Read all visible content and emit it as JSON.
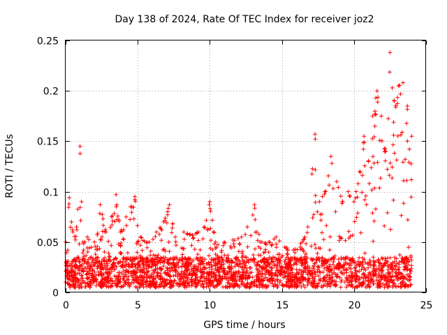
{
  "chart_data": {
    "type": "scatter",
    "title": "Day 138 of 2024, Rate Of TEC Index for receiver joz2",
    "xlabel": "GPS time / hours",
    "ylabel": "ROTI / TECUs",
    "xlim": [
      0,
      25
    ],
    "ylim": [
      0,
      0.25
    ],
    "xticks": [
      0,
      5,
      10,
      15,
      20,
      25
    ],
    "xtick_labels": [
      "0",
      "5",
      "10",
      "15",
      "20",
      "25"
    ],
    "yticks": [
      0,
      0.05,
      0.1,
      0.15,
      0.2,
      0.25
    ],
    "ytick_labels": [
      "0",
      "0.05",
      "0.1",
      "0.15",
      "0.2",
      "0.25"
    ],
    "grid": true,
    "marker": "plus",
    "series": [
      {
        "name": "ROTI",
        "color": "#ff0000",
        "x_range": [
          0.0,
          24.0
        ],
        "baseline_range": [
          0.005,
          0.035
        ],
        "upper_envelope": [
          [
            0.0,
            0.05
          ],
          [
            0.25,
            0.094
          ],
          [
            0.5,
            0.06
          ],
          [
            0.75,
            0.065
          ],
          [
            1.0,
            0.145
          ],
          [
            1.2,
            0.05
          ],
          [
            1.5,
            0.055
          ],
          [
            2.0,
            0.05
          ],
          [
            2.4,
            0.087
          ],
          [
            2.8,
            0.06
          ],
          [
            3.2,
            0.075
          ],
          [
            3.5,
            0.097
          ],
          [
            3.8,
            0.06
          ],
          [
            4.2,
            0.075
          ],
          [
            4.5,
            0.085
          ],
          [
            4.8,
            0.095
          ],
          [
            5.2,
            0.055
          ],
          [
            5.8,
            0.05
          ],
          [
            6.3,
            0.06
          ],
          [
            6.8,
            0.07
          ],
          [
            7.2,
            0.087
          ],
          [
            7.6,
            0.055
          ],
          [
            8.2,
            0.06
          ],
          [
            8.8,
            0.057
          ],
          [
            9.2,
            0.06
          ],
          [
            9.6,
            0.065
          ],
          [
            10.0,
            0.09
          ],
          [
            10.4,
            0.05
          ],
          [
            11.0,
            0.05
          ],
          [
            11.6,
            0.052
          ],
          [
            12.2,
            0.055
          ],
          [
            12.6,
            0.065
          ],
          [
            13.1,
            0.087
          ],
          [
            13.5,
            0.05
          ],
          [
            14.1,
            0.05
          ],
          [
            14.6,
            0.055
          ],
          [
            15.2,
            0.045
          ],
          [
            15.8,
            0.042
          ],
          [
            16.4,
            0.05
          ],
          [
            16.8,
            0.065
          ],
          [
            17.3,
            0.157
          ],
          [
            17.6,
            0.09
          ],
          [
            18.0,
            0.1
          ],
          [
            18.4,
            0.135
          ],
          [
            18.8,
            0.11
          ],
          [
            19.2,
            0.09
          ],
          [
            19.6,
            0.1
          ],
          [
            20.0,
            0.09
          ],
          [
            20.4,
            0.12
          ],
          [
            20.7,
            0.155
          ],
          [
            21.0,
            0.13
          ],
          [
            21.3,
            0.175
          ],
          [
            21.6,
            0.2
          ],
          [
            21.9,
            0.175
          ],
          [
            22.2,
            0.14
          ],
          [
            22.5,
            0.238
          ],
          [
            22.8,
            0.19
          ],
          [
            23.1,
            0.205
          ],
          [
            23.4,
            0.208
          ],
          [
            23.7,
            0.185
          ],
          [
            24.0,
            0.155
          ]
        ]
      }
    ]
  }
}
